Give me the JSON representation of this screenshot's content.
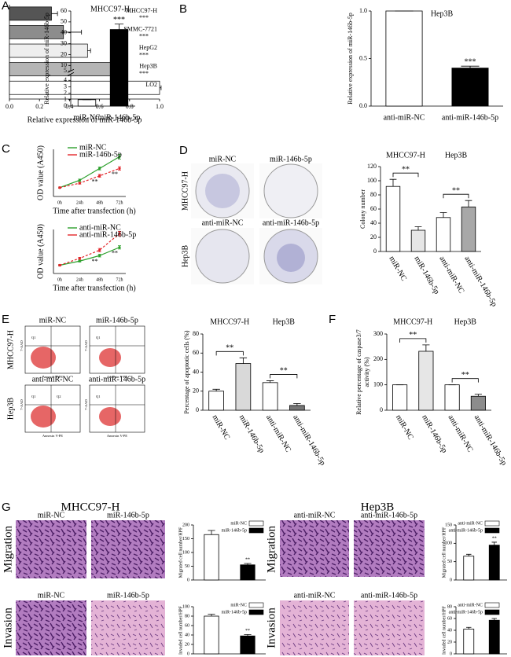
{
  "panel_letters": [
    "A",
    "B",
    "C",
    "D",
    "E",
    "F",
    "G"
  ],
  "panel_d_photos": {
    "columns": [
      "miR-NC",
      "miR-146b-5p",
      "anti-miR-NC",
      "anti-miR-146b-5p"
    ],
    "rows": [
      "MHCC97-H",
      "Hep3B"
    ]
  },
  "panel_e_photos": {
    "columns": [
      "miR-NC",
      "miR-146b-5p",
      "anti-miR-NC",
      "anti-miR-146b-5p"
    ],
    "rows": [
      "MHCC97-H",
      "Hep3B"
    ],
    "x_axis_label": "Annexin V-PE",
    "y_axis_label": "7-AAD",
    "quadrants": [
      "Q1",
      "Q2"
    ]
  },
  "panel_g": {
    "titles": [
      "MHCC97-H",
      "Hep3B"
    ],
    "rows": [
      "Migration",
      "Invasion"
    ],
    "photo_labels": [
      [
        "miR-NC",
        "miR-146b-5p"
      ],
      [
        "anti-miR-NC",
        "anti-miR-146b-5p"
      ]
    ]
  },
  "chart_data": [
    {
      "type": "bar",
      "orientation": "horizontal",
      "x_label": "Relative expression of miR-146b-5p",
      "categories": [
        "MHCC97-H",
        "SMMC-7721",
        "HepG2",
        "Hep3B",
        "LO2"
      ],
      "values": [
        0.28,
        0.36,
        0.52,
        0.7,
        1.0
      ],
      "errors": [
        0.04,
        0.12,
        0.02,
        0.08,
        0.01
      ],
      "annotations": [
        "***",
        "***",
        "***",
        "***",
        null
      ],
      "colors": [
        "#555555",
        "#8c8c8c",
        "#eeeeee",
        "#b5b5b5",
        "#ffffff"
      ],
      "xlim": [
        0,
        1.0
      ],
      "xticks": [
        {
          "value": 0,
          "label": "0.0"
        },
        {
          "value": 0.2,
          "label": "0.2"
        },
        {
          "value": 0.4,
          "label": "0.4"
        },
        {
          "value": 0.6,
          "label": "0.6"
        },
        {
          "value": 0.8,
          "label": "0.8"
        },
        {
          "value": 1.0,
          "label": "1.0"
        }
      ]
    },
    {
      "type": "bar",
      "title": "MHCC97-H",
      "y_label": "Relative expression of miR-146b-5p",
      "categories": [
        "miR-NC",
        "miR-146b-5p"
      ],
      "values": [
        1,
        43
      ],
      "errors": [
        0,
        5
      ],
      "annotations": [
        null,
        "***"
      ],
      "colors": [
        "#ffffff",
        "#000000"
      ],
      "ylim": [
        0,
        60
      ],
      "axis_break": [
        4,
        5
      ],
      "yticks": [
        0,
        1,
        2,
        3,
        4,
        5,
        10,
        20,
        30,
        40,
        50,
        60
      ]
    },
    {
      "type": "bar",
      "title": "Hep3B",
      "y_label": "Relative expression of miR-146b-5p",
      "categories": [
        "anti-miR-NC",
        "anti-miR-146b-5p"
      ],
      "values": [
        1.0,
        0.4
      ],
      "errors": [
        0,
        0.02
      ],
      "annotations": [
        null,
        "***"
      ],
      "colors": [
        "#ffffff",
        "#000000"
      ],
      "ylim": [
        0,
        1.0
      ],
      "yticks": [
        {
          "value": 0,
          "label": "0.0"
        },
        {
          "value": 0.5,
          "label": "0.5"
        },
        {
          "value": 1.0,
          "label": "1.0"
        }
      ]
    },
    {
      "type": "line",
      "x_label": "Time after transfection (h)",
      "y_label": "OD value (A450)",
      "categories": [
        "0h",
        "24h",
        "48h",
        "72h"
      ],
      "annotations": [
        null,
        null,
        "**",
        "**"
      ],
      "ylim": [
        0,
        1.6
      ],
      "series": [
        {
          "name": "miR-NC",
          "color": "#2ca02c",
          "values": [
            0.3,
            0.55,
            0.95,
            1.35
          ],
          "errors": [
            0.02,
            0.04,
            0.05,
            0.08
          ]
        },
        {
          "name": "miR-146b-5p",
          "color": "#e3262b",
          "values": [
            0.3,
            0.45,
            0.7,
            0.95
          ],
          "errors": [
            0.02,
            0.03,
            0.05,
            0.06
          ]
        }
      ]
    },
    {
      "type": "line",
      "x_label": "Time after transfection (h)",
      "y_label": "OD value (A450)",
      "categories": [
        "0h",
        "24h",
        "48h",
        "72h"
      ],
      "annotations": [
        null,
        null,
        "**",
        "**"
      ],
      "ylim": [
        0,
        1.6
      ],
      "series": [
        {
          "name": "anti-miR-NC",
          "color": "#2ca02c",
          "values": [
            0.3,
            0.45,
            0.65,
            0.95
          ],
          "errors": [
            0.02,
            0.03,
            0.05,
            0.06
          ]
        },
        {
          "name": "anti-miR-146b-5p",
          "color": "#e3262b",
          "values": [
            0.3,
            0.55,
            0.85,
            1.45
          ],
          "errors": [
            0.02,
            0.04,
            0.06,
            0.08
          ]
        }
      ]
    },
    {
      "type": "bar",
      "y_label": "Colony number",
      "groups": [
        "MHCC97-H",
        "Hep3B"
      ],
      "categories": [
        "miR-NC",
        "miR-146b-5p",
        "anti-miR-NC",
        "anti-miR-146b-5p"
      ],
      "values": [
        92,
        30,
        48,
        63
      ],
      "errors": [
        10,
        5,
        7,
        9
      ],
      "colors": [
        "#ffffff",
        "#e6e6e6",
        "#ffffff",
        "#a8a8a8"
      ],
      "brackets": [
        {
          "label": "**",
          "from": 0,
          "to": 1
        },
        {
          "label": "**",
          "from": 2,
          "to": 3
        }
      ],
      "ylim": [
        0,
        120
      ],
      "yticks": [
        0,
        20,
        40,
        60,
        80,
        100,
        120
      ]
    },
    {
      "type": "bar",
      "y_label": "Percentage of apoptotic cells (%)",
      "groups": [
        "MHCC97-H",
        "Hep3B"
      ],
      "categories": [
        "miR-NC",
        "miR-146b-5p",
        "anti-miR-NC",
        "anti-miR-146b-5p"
      ],
      "values": [
        20,
        49,
        29,
        5
      ],
      "errors": [
        2,
        6,
        2,
        2
      ],
      "colors": [
        "#ffffff",
        "#d9d9d9",
        "#ffffff",
        "#777777"
      ],
      "brackets": [
        {
          "label": "**",
          "from": 0,
          "to": 1
        },
        {
          "label": "**",
          "from": 2,
          "to": 3
        }
      ],
      "ylim": [
        0,
        80
      ],
      "yticks": [
        0,
        20,
        40,
        60,
        80
      ]
    },
    {
      "type": "bar",
      "y_label": [
        "Relative percentage of caspase3/7",
        "activity (%)"
      ],
      "groups": [
        "MHCC97-H",
        "Hep3B"
      ],
      "categories": [
        "miR-NC",
        "miR-146b-5p",
        "anti-miR-NC",
        "anti-miR-146b-5p"
      ],
      "values": [
        100,
        232,
        100,
        55
      ],
      "errors": [
        0,
        25,
        0,
        8
      ],
      "colors": [
        "#ffffff",
        "#e6e6e6",
        "#ffffff",
        "#8c8c8c"
      ],
      "brackets": [
        {
          "label": "**",
          "from": 0,
          "to": 1
        },
        {
          "label": "**",
          "from": 2,
          "to": 3
        }
      ],
      "ylim": [
        0,
        300
      ],
      "yticks": [
        0,
        100,
        200,
        300
      ]
    },
    {
      "type": "bar",
      "legend": true,
      "y_label": "Migrated cell number/HPF",
      "categories": [
        "miR-NC",
        "miR-146b-5p"
      ],
      "values": [
        165,
        55
      ],
      "errors": [
        15,
        5
      ],
      "annotations": [
        null,
        "**"
      ],
      "colors": [
        "#ffffff",
        "#000000"
      ],
      "ylim": [
        0,
        200
      ],
      "yticks": [
        0,
        50,
        100,
        150,
        200
      ]
    },
    {
      "type": "bar",
      "legend": true,
      "y_label": "Invaded cell number/HPF",
      "categories": [
        "miR-NC",
        "miR-146b-5p"
      ],
      "values": [
        80,
        38
      ],
      "errors": [
        4,
        3
      ],
      "annotations": [
        null,
        "**"
      ],
      "colors": [
        "#ffffff",
        "#000000"
      ],
      "ylim": [
        0,
        100
      ],
      "yticks": [
        0,
        20,
        40,
        60,
        80,
        100
      ]
    },
    {
      "type": "bar",
      "legend": true,
      "y_label": "Migrated cell number/HPF",
      "categories": [
        "anti-miR-NC",
        "anti-miR-146b-5p"
      ],
      "values": [
        65,
        95
      ],
      "errors": [
        5,
        8
      ],
      "annotations": [
        null,
        "**"
      ],
      "colors": [
        "#ffffff",
        "#000000"
      ],
      "ylim": [
        0,
        150
      ],
      "yticks": [
        0,
        50,
        100,
        150
      ]
    },
    {
      "type": "bar",
      "legend": true,
      "y_label": "Invaded cell number/HPF",
      "categories": [
        "anti-miR-NC",
        "anti-miR-146b-5p"
      ],
      "values": [
        42,
        57
      ],
      "errors": [
        3,
        3
      ],
      "annotations": [
        null,
        "**"
      ],
      "colors": [
        "#ffffff",
        "#000000"
      ],
      "ylim": [
        0,
        80
      ],
      "yticks": [
        0,
        20,
        40,
        60,
        80
      ]
    }
  ]
}
